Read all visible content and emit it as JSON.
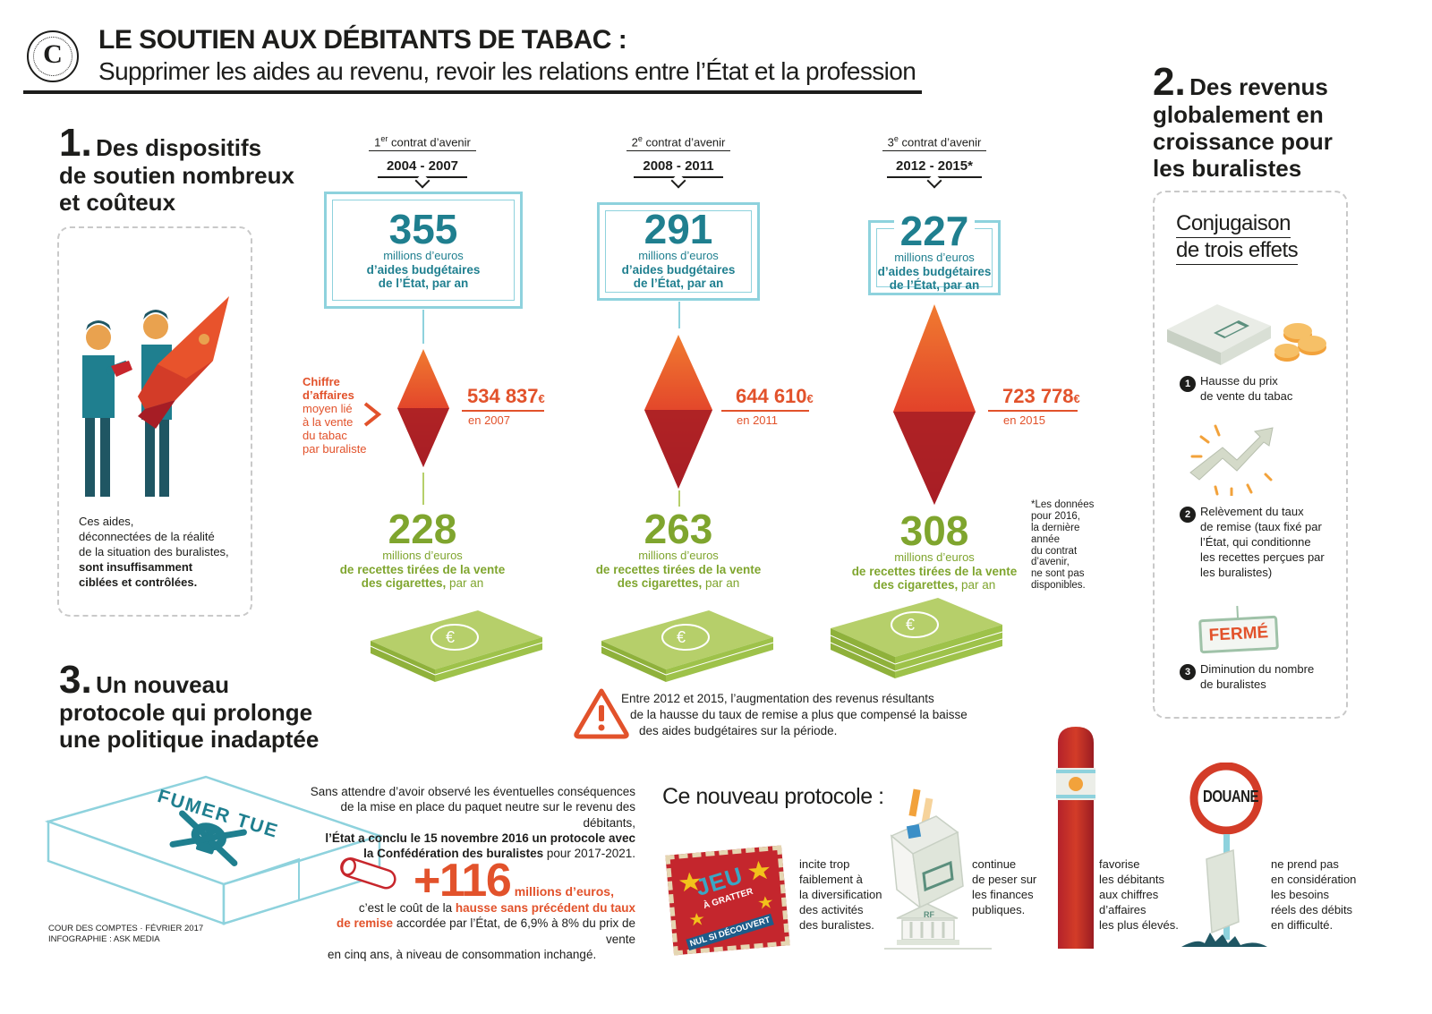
{
  "header": {
    "logo_letter": "C",
    "title": "LE SOUTIEN AUX DÉBITANTS DE TABAC :",
    "subtitle": "Supprimer les aides au revenu, revoir les relations entre l’État et la profession"
  },
  "section1": {
    "number": "1.",
    "title_line1": "Des dispositifs",
    "title_line2": "de soutien nombreux",
    "title_line3": "et coûteux",
    "note_line1": "Ces aides,",
    "note_line2": "déconnectées de la réalité",
    "note_line3": "de la situation des buralistes,",
    "note_bold_line1": "sont insuffisamment",
    "note_bold_line2": "ciblées et contrôlées."
  },
  "ca_label": {
    "bold_line1": "Chiffre",
    "bold_line2": "d’affaires",
    "line3": "moyen lié",
    "line4": "à la vente",
    "line5": "du tabac",
    "line6": "par buraliste"
  },
  "contracts": [
    {
      "label_pre": "1",
      "label_sup": "er",
      "label_post": " contrat d’avenir",
      "years": "2004 - 2007",
      "aid_value": "355",
      "aid_unit": "millions d’euros",
      "aid_line1": "d’aides budgétaires",
      "aid_line2": "de l’État, par an",
      "ca_value": "534 837",
      "ca_currency": "€",
      "ca_year": "en 2007",
      "rec_value": "228",
      "rec_unit": "millions d’euros",
      "rec_line1": "de recettes tirées de la vente",
      "rec_line2": "des cigarettes,",
      "rec_line2_tail": " par an"
    },
    {
      "label_pre": "2",
      "label_sup": "e",
      "label_post": " contrat d’avenir",
      "years": "2008 - 2011",
      "aid_value": "291",
      "aid_unit": "millions d’euros",
      "aid_line1": "d’aides budgétaires",
      "aid_line2": "de l’État, par an",
      "ca_value": "644 610",
      "ca_currency": "€",
      "ca_year": "en 2011",
      "rec_value": "263",
      "rec_unit": "millions d’euros",
      "rec_line1": "de recettes tirées de la vente",
      "rec_line2": "des cigarettes,",
      "rec_line2_tail": " par an"
    },
    {
      "label_pre": "3",
      "label_sup": "e",
      "label_post": " contrat d’avenir",
      "years": "2012 - 2015*",
      "aid_value": "227",
      "aid_unit": "millions d’euros",
      "aid_line1": "d’aides budgétaires",
      "aid_line2": "de l’État, par an",
      "ca_value": "723 778",
      "ca_currency": "€",
      "ca_year": "en 2015",
      "rec_value": "308",
      "rec_unit": "millions d’euros",
      "rec_line1": "de recettes tirées de la vente",
      "rec_line2": "des cigarettes,",
      "rec_line2_tail": " par an"
    }
  ],
  "footnote": {
    "line1": "*Les données",
    "line2": "pour 2016,",
    "line3": "la dernière",
    "line4": "année",
    "line5": "du contrat",
    "line6": "d’avenir,",
    "line7": "ne sont pas",
    "line8": "disponibles."
  },
  "warning": {
    "line1": "Entre 2012 et 2015, l’augmentation des revenus résultants",
    "line2": "de la hausse du taux de remise a plus que compensé la baisse",
    "line3": "des aides budgétaires sur la période."
  },
  "section2": {
    "number": "2.",
    "title_line1": "Des revenus",
    "title_line2": "globalement en",
    "title_line3": "croissance pour",
    "title_line4": "les buralistes",
    "box_title_line1": "Conjugaison",
    "box_title_line2": "de trois effets",
    "effects": [
      {
        "num": "1",
        "line1": "Hausse du prix",
        "line2": "de vente du tabac",
        "line3": "",
        "line4": "",
        "line5": ""
      },
      {
        "num": "2",
        "line1": "Relèvement du taux",
        "line2": "de remise (taux fixé par",
        "line3": "l’État, qui conditionne",
        "line4": "les recettes perçues par",
        "line5": "les buralistes)"
      },
      {
        "num": "3",
        "line1": "Diminution du nombre",
        "line2": "de buralistes",
        "line3": "",
        "line4": "",
        "line5": ""
      }
    ],
    "ferme_sign": "FERMÉ"
  },
  "section3": {
    "number": "3.",
    "title_line1": "Un nouveau",
    "title_line2": "protocole qui prolonge",
    "title_line3": "une politique inadaptée",
    "pack_text": "FUMER TUE",
    "intro_line1": "Sans attendre d’avoir observé les éventuelles conséquences",
    "intro_line2": "de la mise en place du paquet neutre sur le revenu des débitants,",
    "intro_bold_line3": "l’État a conclu le 15 novembre 2016 un protocole avec",
    "intro_bold_line4": "la Confédération des buralistes",
    "intro_line4_tail": " pour 2017-2021.",
    "big_value": "+116",
    "big_unit": "millions d’euros,",
    "cost_line1": "c’est le coût de la ",
    "cost_bold1": "hausse sans précédent du taux",
    "cost_bold2": "de remise",
    "cost_line2_tail": " accordée par l’État, de 6,9% à 8% du prix de vente",
    "cost_line3": "en cinq ans, à niveau de consommation inchangé.",
    "credit_line1": "COUR DES COMPTES · FÉVRIER 2017",
    "credit_line2": "INFOGRAPHIE : ASK MEDIA"
  },
  "protocol": {
    "title": "Ce nouveau protocole :",
    "items": [
      {
        "line1": "incite trop",
        "line2": "faiblement à",
        "line3": "la diversification",
        "line4": "des activités",
        "line5": "des buralistes."
      },
      {
        "line1": "continue",
        "line2": "de peser sur",
        "line3": "les finances",
        "line4": "publiques.",
        "line5": ""
      },
      {
        "line1": "favorise",
        "line2": "les débitants",
        "line3": "aux chiffres",
        "line4": "d’affaires",
        "line5": "les plus élevés."
      },
      {
        "line1": "ne prend pas",
        "line2": " en considération",
        "line3": "les besoins",
        "line4": "réels des débits",
        "line5": "en difficulté."
      }
    ],
    "ticket_line1": "JEU",
    "ticket_line2": "À GRATTER",
    "ticket_line3": "NUL SI DÉCOUVERT",
    "bank_label": "RF",
    "douane_label": "DOUANE"
  },
  "colors": {
    "teal": "#1f7f8f",
    "orange": "#e2522b",
    "green": "#7fa52e",
    "frame": "#8ed2dd",
    "diamond_top": "#e8532c",
    "diamond_bottom": "#a61d25"
  }
}
